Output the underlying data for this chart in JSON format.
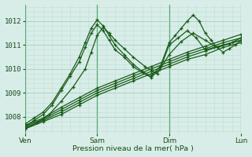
{
  "bg_color": "#d8ede8",
  "plot_bg_color": "#d8ede8",
  "grid_color_minor": "#c0ddd5",
  "grid_color_major": "#a8cfc5",
  "line_color": "#1a5c1a",
  "ylabel": "Pression niveau de la mer( hPa )",
  "xlim": [
    0,
    72
  ],
  "ylim": [
    1007.3,
    1012.7
  ],
  "yticks": [
    1008,
    1009,
    1010,
    1011,
    1012
  ],
  "xticks": [
    0,
    24,
    48,
    72
  ],
  "xticklabels": [
    "Ven",
    "Sam",
    "Dim",
    "Lun"
  ],
  "lines": [
    {
      "x": [
        0,
        6,
        12,
        18,
        24,
        30,
        36,
        42,
        48,
        54,
        60,
        66,
        72
      ],
      "y": [
        1007.5,
        1007.8,
        1008.1,
        1008.5,
        1008.9,
        1009.2,
        1009.5,
        1009.8,
        1010.1,
        1010.4,
        1010.6,
        1010.9,
        1011.1
      ]
    },
    {
      "x": [
        0,
        6,
        12,
        18,
        24,
        30,
        36,
        42,
        48,
        54,
        60,
        66,
        72
      ],
      "y": [
        1007.55,
        1007.85,
        1008.2,
        1008.6,
        1009.0,
        1009.3,
        1009.6,
        1009.9,
        1010.2,
        1010.5,
        1010.75,
        1011.0,
        1011.2
      ]
    },
    {
      "x": [
        0,
        6,
        12,
        18,
        24,
        30,
        36,
        42,
        48,
        54,
        60,
        66,
        72
      ],
      "y": [
        1007.6,
        1007.9,
        1008.3,
        1008.7,
        1009.1,
        1009.4,
        1009.7,
        1010.0,
        1010.3,
        1010.6,
        1010.85,
        1011.1,
        1011.3
      ]
    },
    {
      "x": [
        0,
        6,
        12,
        18,
        24,
        30,
        36,
        42,
        48,
        54,
        60,
        66,
        72
      ],
      "y": [
        1007.65,
        1007.95,
        1008.4,
        1008.8,
        1009.2,
        1009.5,
        1009.8,
        1010.1,
        1010.4,
        1010.7,
        1010.95,
        1011.2,
        1011.45
      ]
    },
    {
      "x": [
        0,
        3,
        6,
        9,
        12,
        15,
        18,
        20,
        22,
        24,
        26,
        28,
        30,
        33,
        36,
        39,
        42,
        45,
        48,
        51,
        54,
        57,
        60,
        63,
        66,
        69,
        72
      ],
      "y": [
        1007.6,
        1007.85,
        1008.1,
        1008.5,
        1009.1,
        1009.7,
        1010.3,
        1010.9,
        1011.5,
        1011.85,
        1011.6,
        1011.2,
        1010.8,
        1010.5,
        1010.1,
        1009.85,
        1009.65,
        1010.0,
        1011.0,
        1011.3,
        1011.6,
        1011.3,
        1010.8,
        1010.9,
        1011.0,
        1011.1,
        1011.2
      ]
    },
    {
      "x": [
        0,
        3,
        6,
        9,
        12,
        15,
        18,
        20,
        22,
        24,
        26,
        28,
        30,
        33,
        36,
        39,
        42,
        45,
        48,
        50,
        52,
        54,
        56,
        58,
        60,
        62,
        64,
        66,
        68,
        70,
        72
      ],
      "y": [
        1007.7,
        1007.95,
        1008.2,
        1008.6,
        1009.2,
        1009.8,
        1010.5,
        1011.1,
        1011.7,
        1012.05,
        1011.8,
        1011.4,
        1011.0,
        1010.6,
        1010.2,
        1009.9,
        1009.7,
        1010.1,
        1011.1,
        1011.4,
        1011.7,
        1012.0,
        1012.25,
        1012.0,
        1011.5,
        1011.2,
        1010.9,
        1010.7,
        1010.85,
        1011.0,
        1011.2
      ]
    },
    {
      "x": [
        0,
        4,
        8,
        12,
        16,
        20,
        22,
        24,
        26,
        28,
        30,
        33,
        36,
        40,
        44,
        48,
        52,
        56,
        60,
        64,
        68,
        72
      ],
      "y": [
        1007.5,
        1007.75,
        1008.1,
        1008.65,
        1009.25,
        1010.0,
        1010.7,
        1011.4,
        1011.75,
        1011.5,
        1011.2,
        1010.85,
        1010.5,
        1010.1,
        1009.8,
        1010.6,
        1011.15,
        1011.5,
        1011.2,
        1010.9,
        1011.05,
        1011.3
      ]
    }
  ]
}
